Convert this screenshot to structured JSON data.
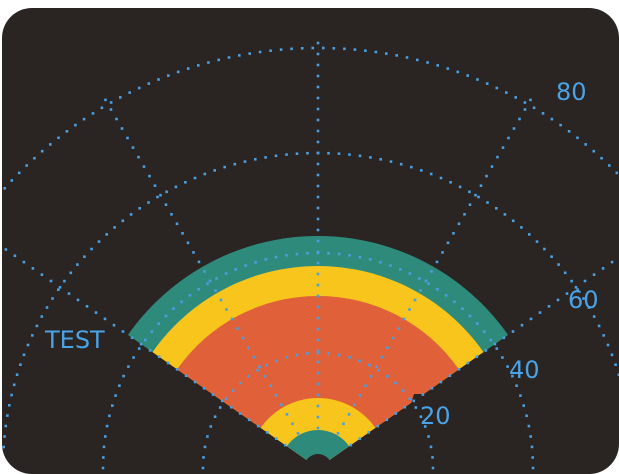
{
  "display": {
    "background_color": "#2a2422",
    "grid_color": "#4a9fe0",
    "label_color": "#4aa3e6",
    "zone_colors": {
      "outer": "#2e8b7c",
      "middle": "#f7c51c",
      "inner": "#e0603a"
    },
    "labels": {
      "test": "TEST",
      "range_80": "80",
      "range_60": "60",
      "range_40": "40",
      "range_20": "20"
    }
  }
}
